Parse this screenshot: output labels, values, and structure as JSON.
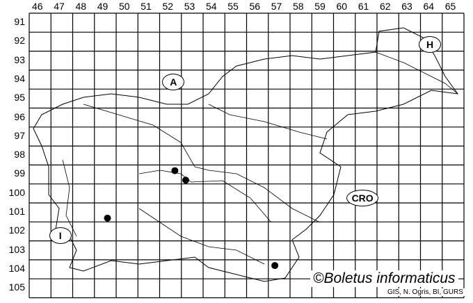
{
  "map": {
    "columns": [
      "46",
      "47",
      "48",
      "49",
      "50",
      "51",
      "52",
      "53",
      "54",
      "55",
      "56",
      "57",
      "58",
      "59",
      "60",
      "61",
      "62",
      "63",
      "64",
      "65"
    ],
    "rows": [
      "91",
      "92",
      "93",
      "94",
      "95",
      "96",
      "97",
      "98",
      "99",
      "100",
      "101",
      "102",
      "103",
      "104",
      "105"
    ],
    "country_labels": [
      {
        "text": "A",
        "col": 52.6,
        "row": 94.6
      },
      {
        "text": "H",
        "col": 64.4,
        "row": 92.6
      },
      {
        "text": "CRO",
        "col": 61.3,
        "row": 100.7
      },
      {
        "text": "I",
        "col": 47.4,
        "row": 102.7
      }
    ],
    "records": [
      {
        "col": 52.7,
        "row": 99.3
      },
      {
        "col": 53.2,
        "row": 99.8
      },
      {
        "col": 49.6,
        "row": 101.8
      },
      {
        "col": 57.3,
        "row": 104.3
      }
    ],
    "dot_color": "#000000",
    "credit": "©Boletus informaticus",
    "source": "GIS, N. Ogris, BI, GURS"
  }
}
